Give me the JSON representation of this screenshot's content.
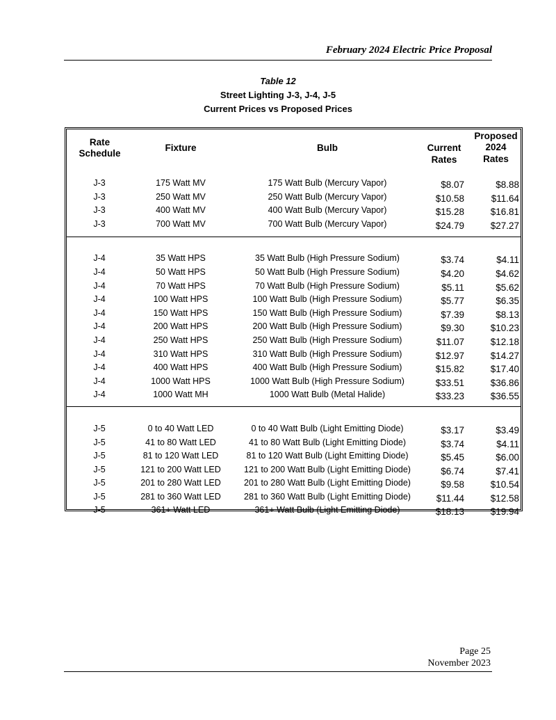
{
  "running_header": "February 2024 Electric Price Proposal",
  "title": {
    "line1": "Table 12",
    "line2": "Street Lighting J-3, J-4, J-5",
    "line3": "Current Prices vs Proposed Prices"
  },
  "columns": {
    "rate": [
      "Rate",
      "Schedule"
    ],
    "fixture": "Fixture",
    "bulb": "Bulb",
    "current": [
      "Current",
      "Rates"
    ],
    "proposed": [
      "Proposed",
      "2024",
      "Rates"
    ]
  },
  "groups": [
    {
      "rows": [
        [
          "J-3",
          "175 Watt MV",
          "175 Watt Bulb (Mercury Vapor)",
          "$8.07",
          "$8.88"
        ],
        [
          "J-3",
          "250 Watt MV",
          "250 Watt Bulb (Mercury Vapor)",
          "$10.58",
          "$11.64"
        ],
        [
          "J-3",
          "400 Watt MV",
          "400 Watt Bulb (Mercury Vapor)",
          "$15.28",
          "$16.81"
        ],
        [
          "J-3",
          "700 Watt MV",
          "700 Watt Bulb (Mercury Vapor)",
          "$24.79",
          "$27.27"
        ]
      ]
    },
    {
      "rows": [
        [
          "J-4",
          "35 Watt HPS",
          "35 Watt Bulb (High Pressure Sodium)",
          "$3.74",
          "$4.11"
        ],
        [
          "J-4",
          "50 Watt HPS",
          "50 Watt Bulb (High Pressure Sodium)",
          "$4.20",
          "$4.62"
        ],
        [
          "J-4",
          "70 Watt HPS",
          "70 Watt Bulb (High Pressure Sodium)",
          "$5.11",
          "$5.62"
        ],
        [
          "J-4",
          "100 Watt HPS",
          "100 Watt Bulb (High Pressure Sodium)",
          "$5.77",
          "$6.35"
        ],
        [
          "J-4",
          "150 Watt HPS",
          "150 Watt Bulb (High Pressure Sodium)",
          "$7.39",
          "$8.13"
        ],
        [
          "J-4",
          "200 Watt HPS",
          "200 Watt Bulb (High Pressure Sodium)",
          "$9.30",
          "$10.23"
        ],
        [
          "J-4",
          "250 Watt HPS",
          "250 Watt Bulb (High Pressure Sodium)",
          "$11.07",
          "$12.18"
        ],
        [
          "J-4",
          "310 Watt HPS",
          "310 Watt Bulb (High Pressure Sodium)",
          "$12.97",
          "$14.27"
        ],
        [
          "J-4",
          "400 Watt HPS",
          "400 Watt Bulb (High Pressure Sodium)",
          "$15.82",
          "$17.40"
        ],
        [
          "J-4",
          "1000 Watt HPS",
          "1000 Watt Bulb (High Pressure Sodium)",
          "$33.51",
          "$36.86"
        ],
        [
          "J-4",
          "1000 Watt MH",
          "1000 Watt Bulb (Metal Halide)",
          "$33.23",
          "$36.55"
        ]
      ]
    },
    {
      "rows": [
        [
          "J-5",
          "0 to 40 Watt LED",
          "0 to 40 Watt Bulb (Light Emitting Diode)",
          "$3.17",
          "$3.49"
        ],
        [
          "J-5",
          "41 to 80 Watt LED",
          "41 to 80 Watt Bulb (Light Emitting Diode)",
          "$3.74",
          "$4.11"
        ],
        [
          "J-5",
          "81 to 120 Watt LED",
          "81 to 120 Watt Bulb (Light Emitting Diode)",
          "$5.45",
          "$6.00"
        ],
        [
          "J-5",
          "121 to 200 Watt LED",
          "121 to 200 Watt Bulb (Light Emitting Diode)",
          "$6.74",
          "$7.41"
        ],
        [
          "J-5",
          "201 to 280 Watt LED",
          "201 to 280 Watt Bulb (Light Emitting Diode)",
          "$9.58",
          "$10.54"
        ],
        [
          "J-5",
          "281 to 360 Watt LED",
          "281 to 360 Watt Bulb (Light Emitting Diode)",
          "$11.44",
          "$12.58"
        ],
        [
          "J-5",
          "361+ Watt LED",
          "361+ Watt Bulb (Light Emitting Diode)",
          "$18.13",
          "$19.94"
        ]
      ]
    }
  ],
  "footer": {
    "page": "Page 25",
    "date": "November 2023"
  }
}
